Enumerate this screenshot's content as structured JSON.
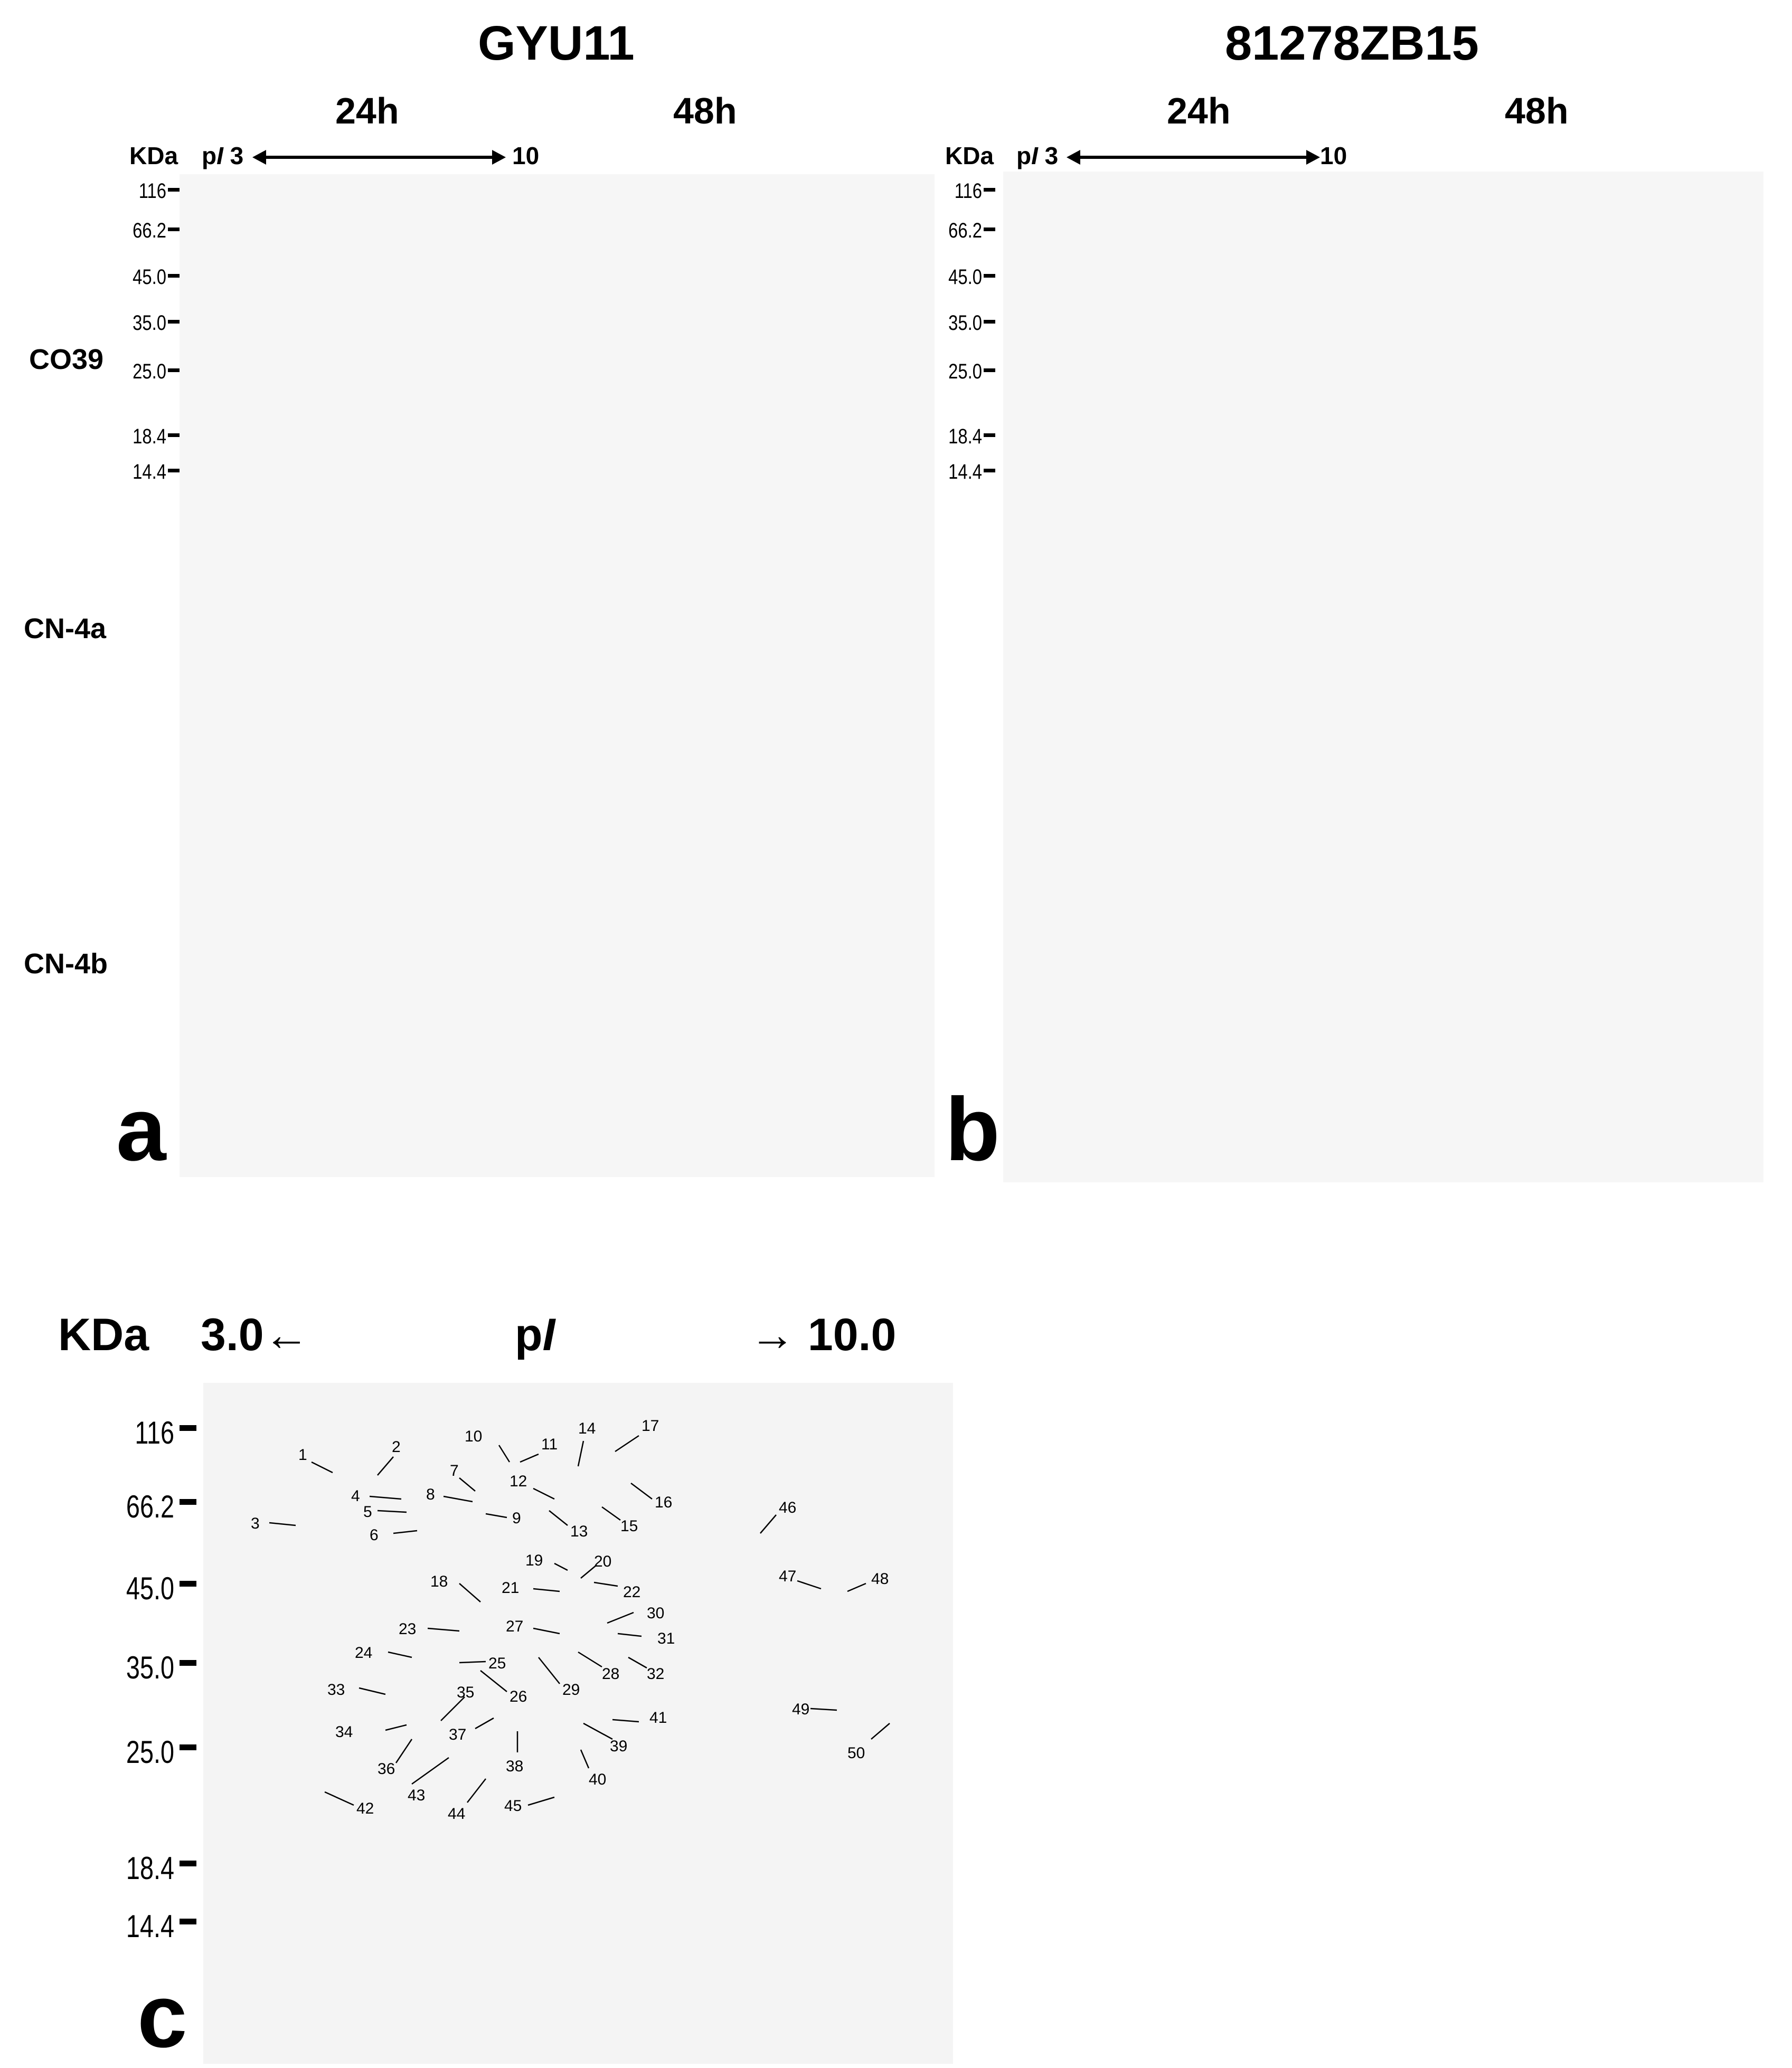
{
  "strains": [
    "GYU11",
    "81278ZB15"
  ],
  "times": [
    "24h",
    "48h"
  ],
  "rows": [
    "CO39",
    "CN-4a",
    "CN-4b"
  ],
  "axis": {
    "kda_label": "KDa",
    "pi_label": "pI",
    "pi_start": "3",
    "pi_end": "10",
    "mw_ticks": [
      "116",
      "66.2",
      "45.0",
      "35.0",
      "25.0",
      "18.4",
      "14.4"
    ]
  },
  "panels": [
    "a",
    "b",
    "c"
  ],
  "panel_c": {
    "kda_label": "KDa",
    "pi_left": "3.0←",
    "pi_label": "pI",
    "pi_right": "→ 10.0",
    "mw_ticks": [
      "116",
      "66.2",
      "45.0",
      "35.0",
      "25.0",
      "18.4",
      "14.4"
    ],
    "spots": [
      "1",
      "2",
      "3",
      "4",
      "5",
      "6",
      "7",
      "8",
      "9",
      "10",
      "11",
      "12",
      "13",
      "14",
      "15",
      "16",
      "17",
      "18",
      "19",
      "20",
      "21",
      "22",
      "23",
      "24",
      "25",
      "26",
      "27",
      "28",
      "29",
      "30",
      "31",
      "32",
      "33",
      "34",
      "35",
      "36",
      "37",
      "38",
      "39",
      "40",
      "41",
      "42",
      "43",
      "44",
      "45",
      "46",
      "47",
      "48",
      "49",
      "50"
    ]
  }
}
